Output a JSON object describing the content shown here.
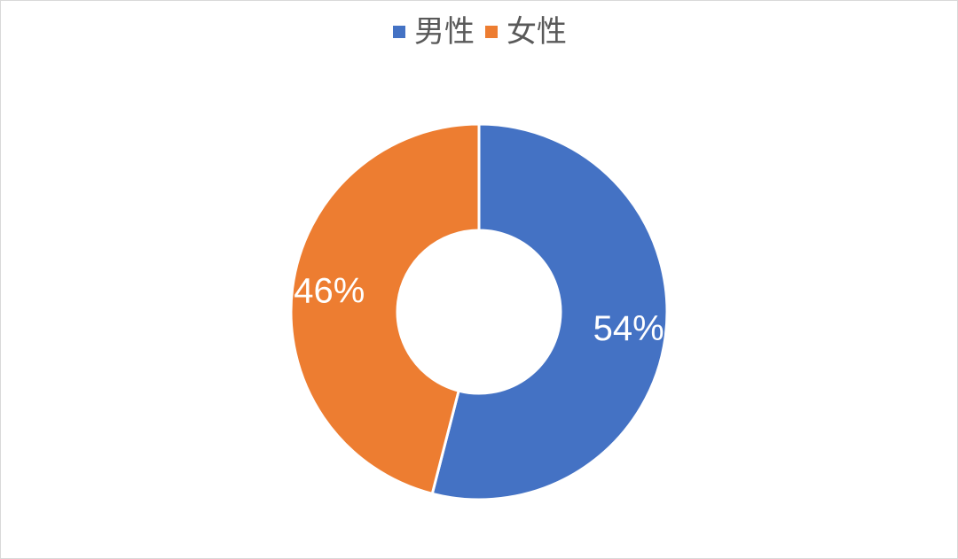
{
  "chart_data": {
    "type": "pie",
    "subtype": "donut",
    "categories": [
      "男性",
      "女性"
    ],
    "values": [
      54,
      46
    ],
    "value_labels": [
      "54%",
      "46%"
    ],
    "colors": [
      "#4472C4",
      "#ED7D31"
    ],
    "legend_position": "top",
    "title": ""
  }
}
